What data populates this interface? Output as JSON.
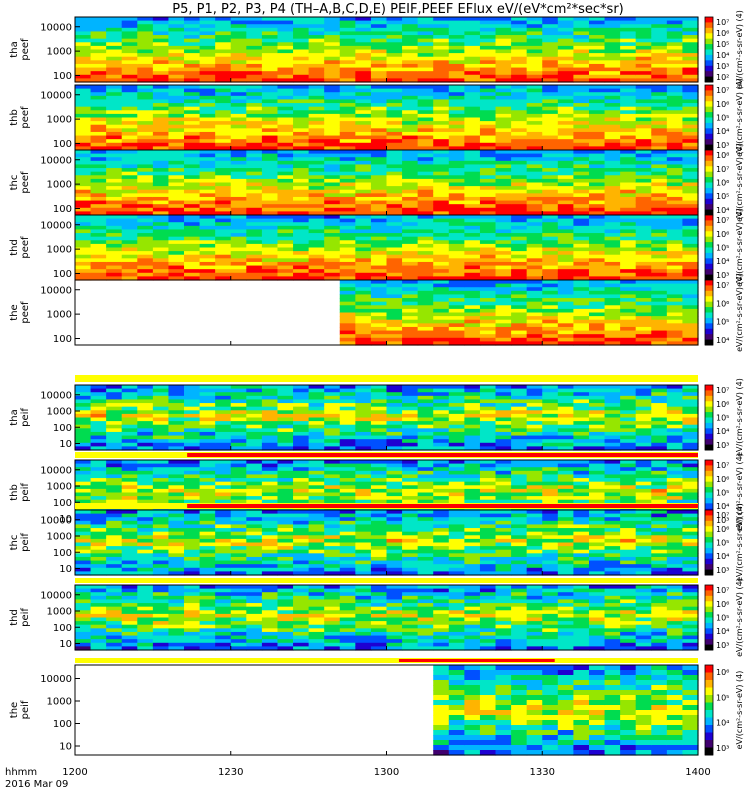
{
  "chart_data": {
    "type": "heatmap",
    "title": "P5, P1, P2, P3, P4 (TH–A,B,C,D,E) PEIF,PEEF EFlux eV/(eV*cm²*sec*sr)",
    "time_axis": {
      "ticks": [
        "1200",
        "1230",
        "1300",
        "1330",
        "1400"
      ],
      "range": [
        "12:00",
        "14:00"
      ],
      "label_line1": "hhmm",
      "label_line2": "2016 Mar 09"
    },
    "panels": [
      {
        "id": "tha_peef",
        "line1": "tha",
        "line2": "peef",
        "yticks": [
          "10000",
          "1000",
          "100"
        ],
        "colorbar_ticks": [
          "10⁷",
          "10⁶",
          "10⁵",
          "10⁴",
          "10³",
          "10²"
        ],
        "colorbar_label": "eV/(cm²-s-sr-eV) (4)",
        "flag_bar": false,
        "data_start": 0.0,
        "data_end": 1.0
      },
      {
        "id": "thb_peef",
        "line1": "thb",
        "line2": "peef",
        "yticks": [
          "10000",
          "1000",
          "100"
        ],
        "colorbar_ticks": [
          "10⁷",
          "10⁶",
          "10⁵",
          "10⁴",
          "10³"
        ],
        "colorbar_label": "eV/(cm²-s-sr-eV) (4)",
        "flag_bar": false,
        "data_start": 0.0,
        "data_end": 1.0
      },
      {
        "id": "thc_peef",
        "line1": "thc",
        "line2": "peef",
        "yticks": [
          "10000",
          "1000",
          "100"
        ],
        "colorbar_ticks": [
          "10⁸",
          "10⁷",
          "10⁶",
          "10⁵",
          "10⁴"
        ],
        "colorbar_label": "eV/(cm²-s-sr-eV) (4)",
        "flag_bar": false,
        "data_start": 0.0,
        "data_end": 1.0
      },
      {
        "id": "thd_peef",
        "line1": "thd",
        "line2": "peef",
        "yticks": [
          "10000",
          "1000",
          "100"
        ],
        "colorbar_ticks": [
          "10⁷",
          "10⁶",
          "10⁵",
          "10⁴",
          "10³"
        ],
        "colorbar_label": "eV/(cm²-s-sr-eV) (4)",
        "flag_bar": false,
        "data_start": 0.0,
        "data_end": 1.0
      },
      {
        "id": "the_peef",
        "line1": "the",
        "line2": "peef",
        "yticks": [
          "10000",
          "1000",
          "100"
        ],
        "colorbar_ticks": [
          "10⁷",
          "10⁶",
          "10⁵",
          "10⁴"
        ],
        "colorbar_label": "eV/(cm²-s-sr-eV) (4)",
        "flag_bar": false,
        "data_start": 0.42,
        "data_end": 1.0
      },
      {
        "id": "tha_peif",
        "line1": "tha",
        "line2": "peif",
        "yticks": [
          "10000",
          "1000",
          "100",
          "10"
        ],
        "colorbar_ticks": [
          "10⁷",
          "10⁶",
          "10⁵",
          "10⁴",
          "10³"
        ],
        "colorbar_label": "eV/(cm²-s-sr-eV) (4)",
        "flag_bar": true,
        "data_start": 0.0,
        "data_end": 1.0
      },
      {
        "id": "thb_peif",
        "line1": "thb",
        "line2": "peif",
        "yticks": [
          "10000",
          "1000",
          "100",
          "10"
        ],
        "colorbar_ticks": [
          "10⁷",
          "10⁶",
          "10⁵",
          "10⁴",
          "10³"
        ],
        "colorbar_label": "eV/(cm²-s-sr-eV) (4)",
        "flag_bar": true,
        "data_start": 0.0,
        "data_end": 1.0
      },
      {
        "id": "thc_peif",
        "line1": "thc",
        "line2": "peif",
        "yticks": [
          "10000",
          "1000",
          "100",
          "10"
        ],
        "colorbar_ticks": [
          "10⁷",
          "10⁶",
          "10⁵",
          "10⁴",
          "10³"
        ],
        "colorbar_label": "eV/(cm²-s-sr-eV) (4)",
        "flag_bar": true,
        "data_start": 0.0,
        "data_end": 1.0
      },
      {
        "id": "thd_peif",
        "line1": "thd",
        "line2": "peif",
        "yticks": [
          "10000",
          "1000",
          "100",
          "10"
        ],
        "colorbar_ticks": [
          "10⁷",
          "10⁶",
          "10⁵",
          "10⁴",
          "10³"
        ],
        "colorbar_label": "eV/(cm²-s-sr-eV) (4)",
        "flag_bar": true,
        "data_start": 0.0,
        "data_end": 1.0
      },
      {
        "id": "the_peif",
        "line1": "the",
        "line2": "peif",
        "yticks": [
          "10000",
          "1000",
          "100",
          "10"
        ],
        "colorbar_ticks": [
          "10⁶",
          "10⁵",
          "10⁴",
          "10³"
        ],
        "colorbar_label": "eV/(cm²-s-sr-eV) (4)",
        "flag_bar": false,
        "data_start": 0.56,
        "data_end": 1.0
      }
    ],
    "colormap": [
      "#000000",
      "#40006e",
      "#1e00d2",
      "#0050ff",
      "#00b4ff",
      "#00e6c8",
      "#00dc50",
      "#96e600",
      "#ffff00",
      "#ffb400",
      "#ff6400",
      "#ff0000"
    ]
  }
}
